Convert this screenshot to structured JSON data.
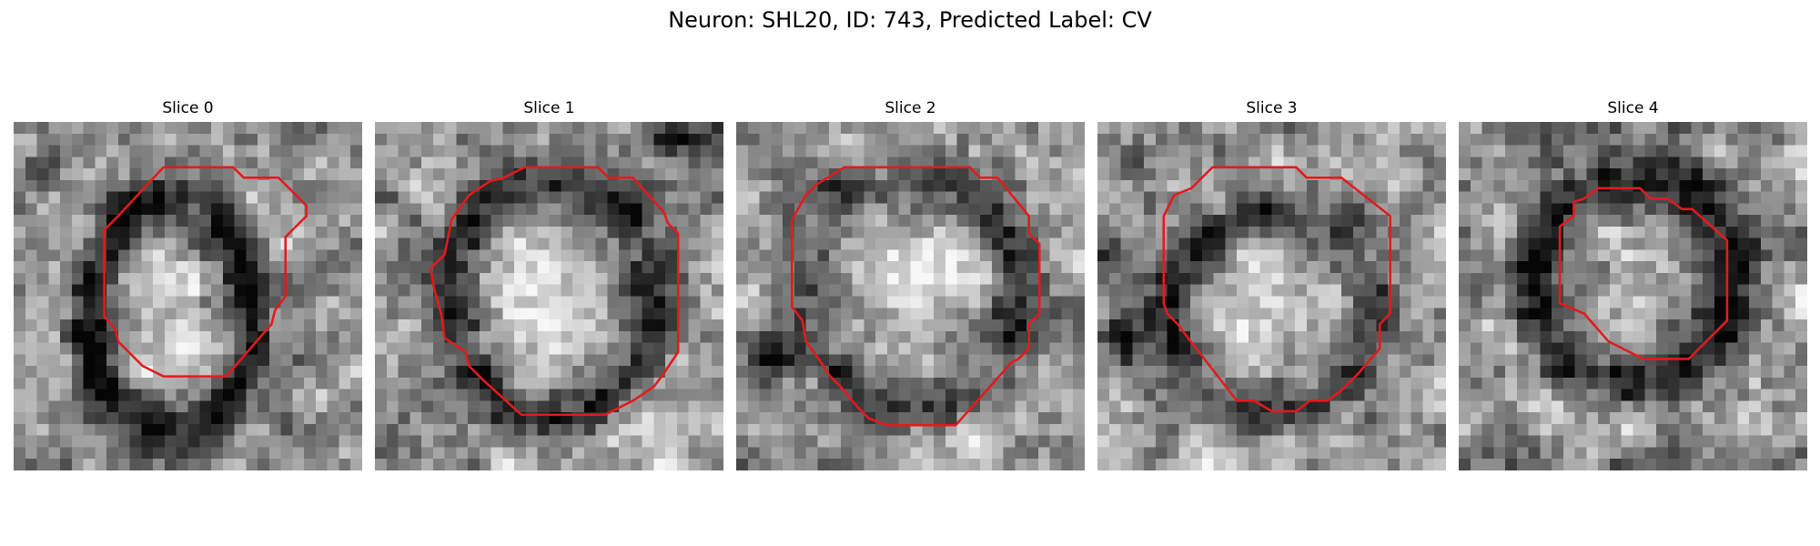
{
  "title": "Neuron: SHL20, ID: 743, Predicted Label: CV",
  "outline_color": "#e41a1c",
  "panels": [
    {
      "title": "Slice 0",
      "seed": 11,
      "dark": [
        [
          0.45,
          0.56,
          0.3,
          0.42,
          0.55
        ],
        [
          0.18,
          0.62,
          0.07,
          0.05,
          0.25
        ]
      ],
      "bright": [
        [
          0.45,
          0.47,
          0.1,
          0.3
        ]
      ],
      "contour": [
        [
          0.43,
          0.13
        ],
        [
          0.63,
          0.13
        ],
        [
          0.66,
          0.16
        ],
        [
          0.76,
          0.16
        ],
        [
          0.84,
          0.24
        ],
        [
          0.84,
          0.27
        ],
        [
          0.78,
          0.33
        ],
        [
          0.78,
          0.5
        ],
        [
          0.75,
          0.54
        ],
        [
          0.74,
          0.58
        ],
        [
          0.61,
          0.73
        ],
        [
          0.43,
          0.73
        ],
        [
          0.37,
          0.7
        ],
        [
          0.3,
          0.63
        ],
        [
          0.29,
          0.59
        ],
        [
          0.26,
          0.56
        ],
        [
          0.26,
          0.31
        ],
        [
          0.3,
          0.27
        ]
      ]
    },
    {
      "title": "Slice 1",
      "seed": 23,
      "dark": [
        [
          0.5,
          0.5,
          0.38,
          0.42,
          0.45
        ],
        [
          0.85,
          0.05,
          0.08,
          0.06,
          0.55
        ]
      ],
      "bright": [
        [
          0.52,
          0.52,
          0.28,
          0.3
        ]
      ],
      "contour": [
        [
          0.43,
          0.13
        ],
        [
          0.64,
          0.13
        ],
        [
          0.67,
          0.16
        ],
        [
          0.74,
          0.16
        ],
        [
          0.83,
          0.26
        ],
        [
          0.84,
          0.29
        ],
        [
          0.87,
          0.32
        ],
        [
          0.87,
          0.66
        ],
        [
          0.83,
          0.72
        ],
        [
          0.8,
          0.76
        ],
        [
          0.74,
          0.8
        ],
        [
          0.7,
          0.82
        ],
        [
          0.66,
          0.84
        ],
        [
          0.42,
          0.84
        ],
        [
          0.31,
          0.74
        ],
        [
          0.27,
          0.7
        ],
        [
          0.26,
          0.66
        ],
        [
          0.2,
          0.62
        ],
        [
          0.19,
          0.55
        ],
        [
          0.17,
          0.48
        ],
        [
          0.16,
          0.42
        ],
        [
          0.2,
          0.38
        ],
        [
          0.22,
          0.28
        ],
        [
          0.27,
          0.21
        ],
        [
          0.3,
          0.19
        ],
        [
          0.33,
          0.17
        ],
        [
          0.37,
          0.16
        ]
      ]
    },
    {
      "title": "Slice 2",
      "seed": 37,
      "dark": [
        [
          0.5,
          0.48,
          0.4,
          0.4,
          0.4
        ],
        [
          0.1,
          0.68,
          0.08,
          0.07,
          0.55
        ]
      ],
      "bright": [
        [
          0.5,
          0.45,
          0.32,
          0.28
        ]
      ],
      "contour": [
        [
          0.31,
          0.13
        ],
        [
          0.67,
          0.13
        ],
        [
          0.7,
          0.16
        ],
        [
          0.75,
          0.16
        ],
        [
          0.84,
          0.27
        ],
        [
          0.84,
          0.32
        ],
        [
          0.87,
          0.35
        ],
        [
          0.87,
          0.55
        ],
        [
          0.84,
          0.58
        ],
        [
          0.84,
          0.65
        ],
        [
          0.81,
          0.68
        ],
        [
          0.79,
          0.69
        ],
        [
          0.63,
          0.87
        ],
        [
          0.43,
          0.87
        ],
        [
          0.38,
          0.85
        ],
        [
          0.35,
          0.82
        ],
        [
          0.3,
          0.76
        ],
        [
          0.27,
          0.73
        ],
        [
          0.23,
          0.67
        ],
        [
          0.2,
          0.63
        ],
        [
          0.19,
          0.57
        ],
        [
          0.16,
          0.53
        ],
        [
          0.16,
          0.28
        ],
        [
          0.2,
          0.21
        ],
        [
          0.23,
          0.18
        ]
      ]
    },
    {
      "title": "Slice 3",
      "seed": 51,
      "dark": [
        [
          0.5,
          0.55,
          0.38,
          0.36,
          0.45
        ],
        [
          0.07,
          0.62,
          0.06,
          0.08,
          0.55
        ]
      ],
      "bright": [
        [
          0.5,
          0.52,
          0.25,
          0.28
        ]
      ],
      "contour": [
        [
          0.33,
          0.13
        ],
        [
          0.57,
          0.13
        ],
        [
          0.6,
          0.16
        ],
        [
          0.7,
          0.16
        ],
        [
          0.84,
          0.27
        ],
        [
          0.84,
          0.55
        ],
        [
          0.81,
          0.58
        ],
        [
          0.81,
          0.65
        ],
        [
          0.75,
          0.72
        ],
        [
          0.7,
          0.77
        ],
        [
          0.66,
          0.8
        ],
        [
          0.61,
          0.8
        ],
        [
          0.57,
          0.83
        ],
        [
          0.5,
          0.83
        ],
        [
          0.45,
          0.8
        ],
        [
          0.4,
          0.8
        ],
        [
          0.26,
          0.62
        ],
        [
          0.23,
          0.58
        ],
        [
          0.2,
          0.55
        ],
        [
          0.19,
          0.52
        ],
        [
          0.19,
          0.27
        ],
        [
          0.22,
          0.21
        ],
        [
          0.27,
          0.19
        ],
        [
          0.3,
          0.16
        ]
      ]
    },
    {
      "title": "Slice 4",
      "seed": 67,
      "dark": [
        [
          0.5,
          0.45,
          0.36,
          0.38,
          0.48
        ]
      ],
      "bright": [
        [
          0.48,
          0.48,
          0.13,
          0.15
        ]
      ],
      "contour": [
        [
          0.4,
          0.19
        ],
        [
          0.52,
          0.19
        ],
        [
          0.55,
          0.22
        ],
        [
          0.6,
          0.22
        ],
        [
          0.64,
          0.25
        ],
        [
          0.67,
          0.25
        ],
        [
          0.77,
          0.34
        ],
        [
          0.77,
          0.57
        ],
        [
          0.71,
          0.63
        ],
        [
          0.66,
          0.68
        ],
        [
          0.53,
          0.68
        ],
        [
          0.43,
          0.63
        ],
        [
          0.36,
          0.55
        ],
        [
          0.29,
          0.52
        ],
        [
          0.29,
          0.3
        ],
        [
          0.33,
          0.27
        ],
        [
          0.33,
          0.23
        ],
        [
          0.36,
          0.22
        ]
      ]
    }
  ]
}
